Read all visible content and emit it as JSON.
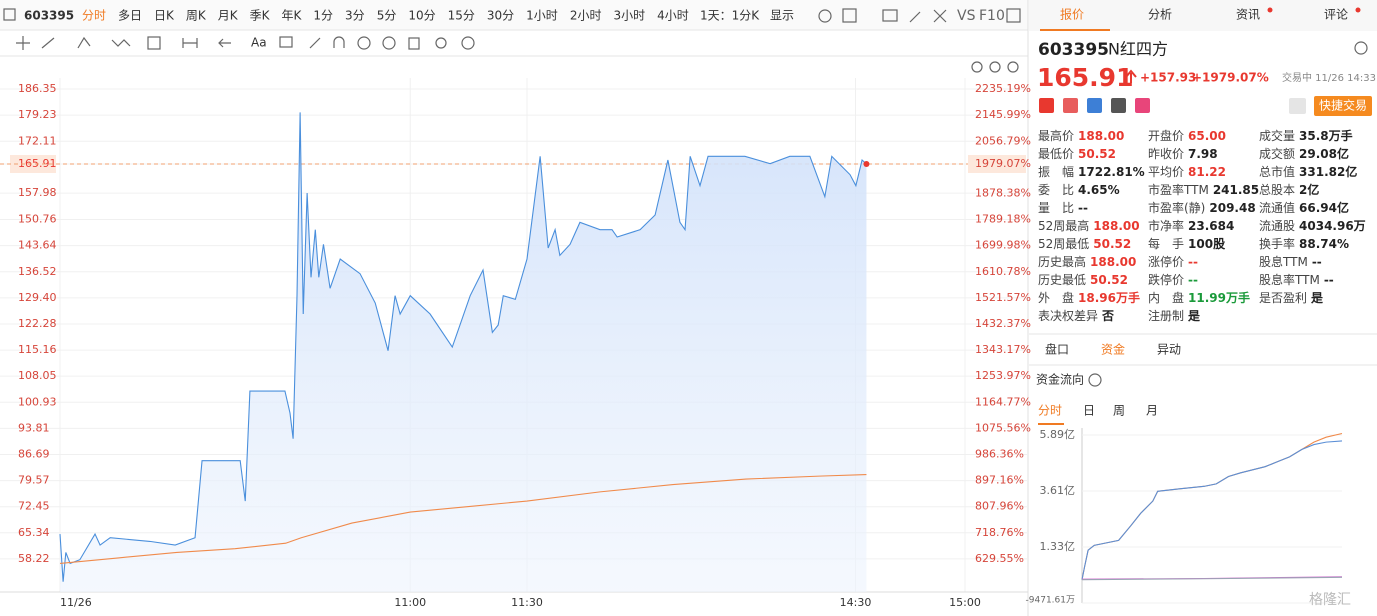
{
  "toolbar": {
    "code": "603395",
    "periods": [
      "分时",
      "多日",
      "日K",
      "周K",
      "月K",
      "季K",
      "年K",
      "1分",
      "3分",
      "5分",
      "10分",
      "15分",
      "30分",
      "1小时",
      "2小时",
      "3小时",
      "4小时"
    ],
    "range": "1天：1分K",
    "display": "显示",
    "vs": "VS",
    "f10": "F10",
    "text_tool": "Aa"
  },
  "chart": {
    "type": "line",
    "xlim": [
      0,
      240
    ],
    "xticks": [
      {
        "value": 0,
        "label": "11/26"
      },
      {
        "value": 90,
        "label": "11:00"
      },
      {
        "value": 120,
        "label": "11:30"
      },
      {
        "value": 210,
        "label": "14:30"
      },
      {
        "value": 240,
        "label": "15:00"
      }
    ],
    "ylim": [
      49.2,
      189.36
    ],
    "yticks": [
      186.35,
      179.23,
      172.11,
      165.91,
      157.98,
      150.76,
      143.64,
      136.52,
      {
        "value": 129.4,
        "label": "129.40"
      },
      122.28,
      115.16,
      108.05,
      100.93,
      93.81,
      86.69,
      79.57,
      72.45,
      65.34,
      58.22
    ],
    "y2lim": [
      516.54,
      2272.93
    ],
    "y2ticks": [
      {
        "value": 2235.19,
        "label": "2235.19%"
      },
      {
        "value": 2145.99,
        "label": "2145.99%"
      },
      {
        "value": 2056.79,
        "label": "2056.79%"
      },
      {
        "value": 1979.07,
        "label": "1979.07%"
      },
      {
        "value": 1878.38,
        "label": "1878.38%"
      },
      {
        "value": 1789.18,
        "label": "1789.18%"
      },
      {
        "value": 1699.98,
        "label": "1699.98%"
      },
      {
        "value": 1610.78,
        "label": "1610.78%"
      },
      {
        "value": 1521.57,
        "label": "1521.57%"
      },
      {
        "value": 1432.37,
        "label": "1432.37%"
      },
      {
        "value": 1343.17,
        "label": "1343.17%"
      },
      {
        "value": 1253.97,
        "label": "1253.97%"
      },
      {
        "value": 1164.77,
        "label": "1164.77%"
      },
      {
        "value": 1075.56,
        "label": "1075.56%"
      },
      {
        "value": 986.36,
        "label": "986.36%"
      },
      {
        "value": 897.16,
        "label": "897.16%"
      },
      {
        "value": 807.96,
        "label": "807.96%"
      },
      {
        "value": 718.76,
        "label": "718.76%"
      },
      {
        "value": 629.55,
        "label": "629.55%"
      }
    ],
    "grid": true,
    "series": [
      {
        "color": "#4a8fdc",
        "area": true,
        "x": [
          0,
          0.8,
          1.5,
          2.6,
          5.1,
          9,
          10.3,
          12.9,
          23.1,
          29.6,
          34.7,
          36.5,
          46.3,
          47.6,
          48.8,
          57.8,
          59.1,
          59.9,
          60.9,
          61.7,
          62.5,
          63.5,
          64.5,
          65.6,
          66.5,
          67.7,
          69.4,
          72,
          77.1,
          81,
          84.3,
          86.1,
          87.4,
          90,
          95.1,
          100.8,
          105.4,
          108.7,
          111.1,
          112.6,
          113.9,
          117,
          120,
          123.6,
          125.8,
          127.7,
          129,
          131.8,
          134.5,
          140,
          143.3,
          144.7,
          151,
          155.1,
          158.6,
          161.9,
          163.3,
          164.7,
          167.4,
          169.6,
          179.7,
          186.6,
          192,
          197.5,
          201.6,
          203.5,
          208.5,
          210.1,
          211.8,
          213
        ],
        "values": [
          65,
          52,
          60,
          57,
          58,
          65,
          62,
          64,
          63,
          62,
          64,
          85,
          85,
          74,
          104,
          104,
          98,
          91,
          130,
          180,
          125,
          158,
          135,
          148,
          135,
          144,
          132,
          140,
          136,
          128,
          115,
          130,
          125,
          130,
          125,
          116,
          130,
          137,
          120,
          122,
          130,
          129,
          140,
          168,
          143,
          148,
          141,
          144,
          150,
          148,
          148,
          146,
          148,
          152,
          167,
          150,
          148,
          168,
          160,
          168,
          168,
          166,
          168,
          168,
          157,
          168,
          163,
          160,
          167,
          165.91
        ]
      },
      {
        "color": "#f08a4b",
        "x": [
          0,
          15,
          30,
          45,
          58,
          62,
          75,
          90,
          105,
          120,
          140,
          160,
          180,
          200,
          213
        ],
        "values": [
          57,
          58.5,
          60,
          61,
          62.5,
          64,
          68,
          71,
          72.5,
          74,
          76.5,
          78.5,
          80,
          80.8,
          81.22
        ]
      }
    ]
  },
  "quote": {
    "tabs": [
      "报价",
      "分析",
      "资讯",
      "评论"
    ],
    "code": "603395",
    "name": "N红四方",
    "price": 165.91,
    "change": "+157.93",
    "change_pct": "+1979.07%",
    "status": "交易中 11/26 14:33",
    "trade_button": "快捷交易",
    "fields": [
      [
        {
          "label": "最高价",
          "value": "188.00",
          "color": "#e8382f"
        },
        {
          "label": "开盘价",
          "value": "65.00",
          "color": "#e8382f"
        },
        {
          "label": "成交量",
          "value": "35.8万手"
        }
      ],
      [
        {
          "label": "最低价",
          "value": "50.52",
          "color": "#e8382f"
        },
        {
          "label": "昨收价",
          "value": "7.98"
        },
        {
          "label": "成交额",
          "value": "29.08亿"
        }
      ],
      [
        {
          "label": "振　幅",
          "value": "1722.81%"
        },
        {
          "label": "平均价",
          "value": "81.22",
          "color": "#e8382f"
        },
        {
          "label": "总市值",
          "value": "331.82亿"
        }
      ],
      [
        {
          "label": "委　比",
          "value": "4.65%"
        },
        {
          "label": "市盈率TTM",
          "value": "241.85"
        },
        {
          "label": "总股本",
          "value": "2亿"
        }
      ],
      [
        {
          "label": "量　比",
          "value": "--"
        },
        {
          "label": "市盈率(静)",
          "value": "209.48"
        },
        {
          "label": "流通值",
          "value": "66.94亿"
        }
      ],
      [
        {
          "label": "52周最高",
          "value": "188.00",
          "color": "#e8382f"
        },
        {
          "label": "市净率",
          "value": "23.684"
        },
        {
          "label": "流通股",
          "value": "4034.96万"
        }
      ],
      [
        {
          "label": "52周最低",
          "value": "50.52",
          "color": "#e8382f"
        },
        {
          "label": "每　手",
          "value": "100股"
        },
        {
          "label": "换手率",
          "value": "88.74%"
        }
      ],
      [
        {
          "label": "历史最高",
          "value": "188.00",
          "color": "#e8382f"
        },
        {
          "label": "涨停价",
          "value": "--",
          "color": "#e8382f"
        },
        {
          "label": "股息TTM",
          "value": "--"
        }
      ],
      [
        {
          "label": "历史最低",
          "value": "50.52",
          "color": "#e8382f"
        },
        {
          "label": "跌停价",
          "value": "--",
          "color": "#1a9a3a"
        },
        {
          "label": "股息率TTM",
          "value": "--"
        }
      ],
      [
        {
          "label": "外　盘",
          "value": "18.96万手",
          "color": "#e8382f"
        },
        {
          "label": "内　盘",
          "value": "11.99万手",
          "color": "#1a9a3a"
        },
        {
          "label": "是否盈利",
          "value": "是"
        }
      ],
      [
        {
          "label": "表决权差异",
          "value": "否"
        },
        {
          "label": "注册制",
          "value": "是"
        }
      ]
    ],
    "subtabs": [
      "盘口",
      "资金",
      "异动"
    ]
  },
  "flow": {
    "title": "资金流向",
    "periods": [
      "分时",
      "日",
      "周",
      "月"
    ],
    "xlim": [
      0,
      213
    ],
    "ylim": [
      -0.947161,
      5.89
    ],
    "yticks": [
      {
        "value": 5.89,
        "label": "5.89亿"
      },
      {
        "value": 3.61,
        "label": "3.61亿"
      },
      {
        "value": 1.33,
        "label": "1.33亿"
      },
      {
        "value": -0.947161,
        "label": "-9471.61万"
      }
    ],
    "series": [
      {
        "color": "#f08a4b",
        "x": [
          0,
          2,
          5,
          10,
          20,
          30,
          40,
          48,
          58,
          62,
          80,
          100,
          110,
          120,
          130,
          150,
          160,
          170,
          180,
          190,
          200,
          213
        ],
        "values": [
          0,
          0.5,
          1.2,
          1.4,
          1.5,
          1.6,
          2.2,
          2.7,
          3.2,
          3.6,
          3.7,
          3.8,
          3.9,
          4.2,
          4.35,
          4.6,
          4.8,
          5.0,
          5.3,
          5.6,
          5.8,
          5.95
        ]
      },
      {
        "color": "#5b8fd6",
        "x": [
          0,
          2,
          5,
          10,
          20,
          30,
          40,
          48,
          58,
          62,
          80,
          100,
          110,
          120,
          130,
          150,
          160,
          170,
          180,
          190,
          200,
          213
        ],
        "values": [
          0,
          0.5,
          1.2,
          1.4,
          1.5,
          1.6,
          2.2,
          2.7,
          3.2,
          3.6,
          3.7,
          3.8,
          3.9,
          4.2,
          4.35,
          4.6,
          4.8,
          5.0,
          5.3,
          5.5,
          5.6,
          5.65
        ]
      },
      {
        "color": "#d46bd0",
        "x": [
          0,
          100,
          213
        ],
        "values": [
          0.02,
          0.05,
          0.12
        ]
      },
      {
        "color": "#9aa4b4",
        "x": [
          0,
          100,
          213
        ],
        "values": [
          0.0,
          0.04,
          0.1
        ]
      }
    ]
  },
  "watermark": "格隆汇"
}
